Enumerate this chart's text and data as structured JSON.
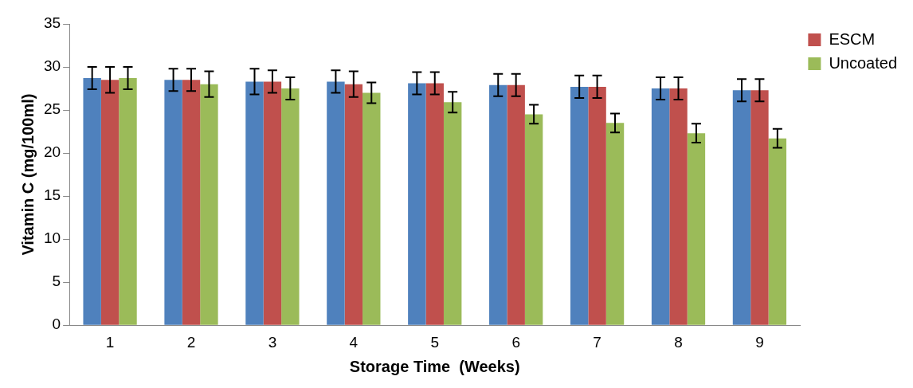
{
  "chart_data": {
    "type": "bar",
    "xlabel": "Storage Time  (Weeks)",
    "ylabel": "Vitamin C (mg/100ml)",
    "categories": [
      "1",
      "2",
      "3",
      "4",
      "5",
      "6",
      "7",
      "8",
      "9"
    ],
    "series": [
      {
        "color": "#4f81bd",
        "values": [
          28.7,
          28.5,
          28.3,
          28.3,
          28.1,
          27.9,
          27.7,
          27.5,
          27.3
        ],
        "errors": [
          1.3,
          1.3,
          1.5,
          1.3,
          1.3,
          1.3,
          1.3,
          1.3,
          1.3
        ]
      },
      {
        "name": "ESCM",
        "color": "#c0504d",
        "values": [
          28.5,
          28.5,
          28.3,
          28.0,
          28.1,
          27.9,
          27.7,
          27.5,
          27.3
        ],
        "errors": [
          1.5,
          1.3,
          1.3,
          1.5,
          1.3,
          1.3,
          1.3,
          1.3,
          1.3
        ]
      },
      {
        "name": "Uncoated",
        "color": "#9bbb59",
        "values": [
          28.7,
          28.0,
          27.5,
          27.0,
          25.9,
          24.5,
          23.5,
          22.3,
          21.7
        ],
        "errors": [
          1.3,
          1.5,
          1.3,
          1.2,
          1.2,
          1.1,
          1.1,
          1.1,
          1.1
        ]
      }
    ],
    "ylim": [
      0,
      35
    ],
    "yticks": [
      0,
      5,
      10,
      15,
      20,
      25,
      30,
      35
    ],
    "grid": false,
    "legend": "right"
  }
}
